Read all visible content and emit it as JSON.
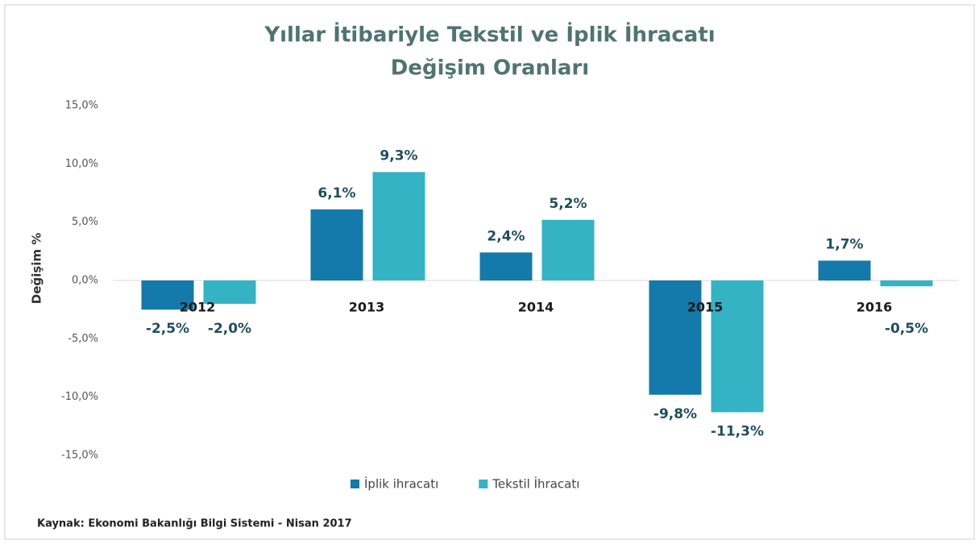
{
  "chart_data": {
    "type": "bar",
    "title": [
      "Yıllar İtibariyle Tekstil ve İplik İhracatı",
      "Değişim Oranları"
    ],
    "ylabel": "Değişim %",
    "source": "Kaynak: Ekonomi Bakanlığı Bilgi Sistemi - Nisan 2017",
    "categories": [
      "2012",
      "2013",
      "2014",
      "2015",
      "2016"
    ],
    "series": [
      {
        "name": "İplik ihracatı",
        "color": "#1479ab",
        "values": [
          -2.5,
          6.1,
          2.4,
          -9.8,
          1.7
        ],
        "value_labels": [
          "-2,5%",
          "6,1%",
          "2,4%",
          "-9,8%",
          "1,7%"
        ]
      },
      {
        "name": "Tekstil İhracatı",
        "color": "#33b3c4",
        "values": [
          -2.0,
          9.3,
          5.2,
          -11.3,
          -0.5
        ],
        "value_labels": [
          "-2,0%",
          "9,3%",
          "5,2%",
          "-11,3%",
          "-0,5%"
        ]
      }
    ],
    "ylim": [
      -15,
      15
    ],
    "yticks": [
      {
        "value": -15,
        "label": "-15,0%"
      },
      {
        "value": -10,
        "label": "-10,0%"
      },
      {
        "value": -5,
        "label": "-5,0%"
      },
      {
        "value": 0,
        "label": "0,0%"
      },
      {
        "value": 5,
        "label": "5,0%"
      },
      {
        "value": 10,
        "label": "10,0%"
      },
      {
        "value": 15,
        "label": "15,0%"
      }
    ],
    "legend": "bottom"
  }
}
